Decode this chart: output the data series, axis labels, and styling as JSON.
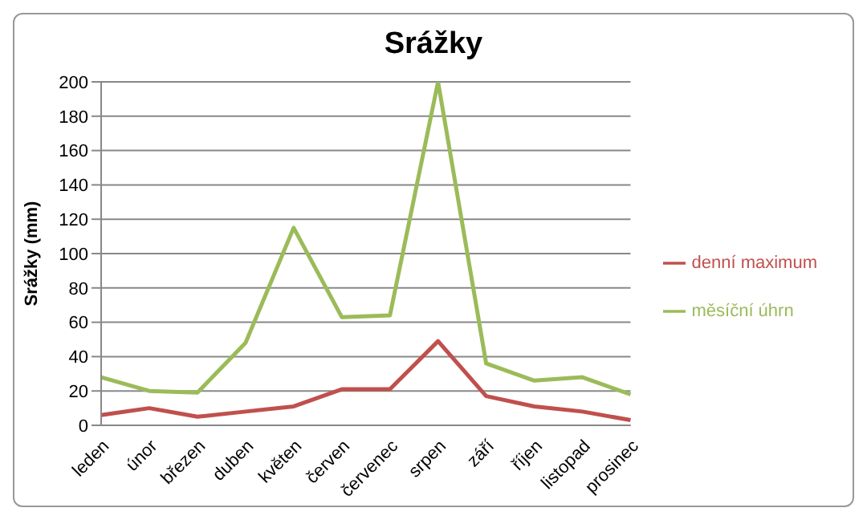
{
  "chart_data": {
    "type": "line",
    "title": "Srážky",
    "ylabel": "Srážky (mm)",
    "categories": [
      "leden",
      "únor",
      "březen",
      "duben",
      "květen",
      "červen",
      "červenec",
      "srpen",
      "září",
      "říjen",
      "listopad",
      "prosinec"
    ],
    "series": [
      {
        "name": "měsíční úhrn",
        "color": "#9bbb59",
        "values": [
          28,
          20,
          19,
          48,
          115,
          63,
          64,
          200,
          36,
          26,
          28,
          18
        ]
      },
      {
        "name": "denní maximum",
        "color": "#c0504d",
        "values": [
          6,
          10,
          5,
          8,
          11,
          21,
          21,
          49,
          17,
          11,
          8,
          3
        ]
      }
    ],
    "ylim": [
      0,
      200
    ],
    "yticks": [
      0,
      20,
      40,
      60,
      80,
      100,
      120,
      140,
      160,
      180,
      200
    ],
    "grid": "y",
    "legend": "right",
    "marker": "none",
    "line_style": "solid"
  }
}
